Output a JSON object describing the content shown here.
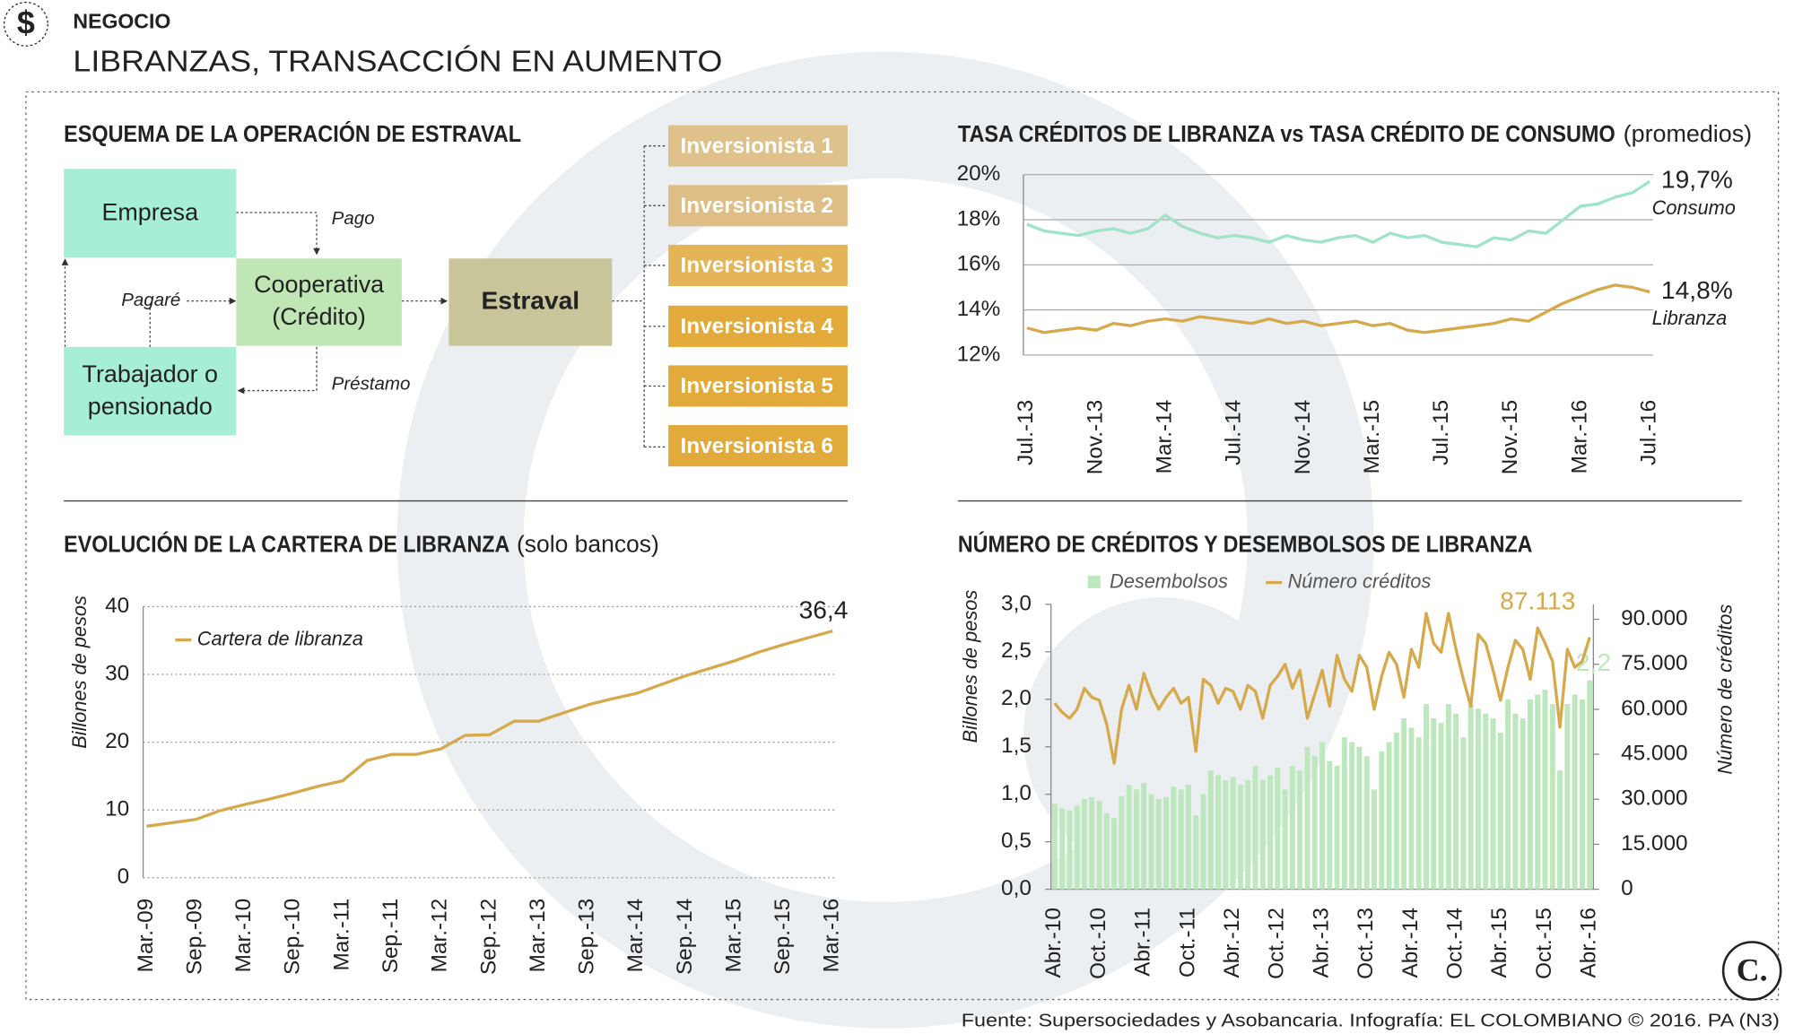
{
  "header": {
    "icon": "$",
    "section": "NEGOCIO",
    "title": "LIBRANZAS, TRANSACCIÓN EN AUMENTO"
  },
  "diagram": {
    "title": "ESQUEMA DE LA OPERACIÓN DE ESTRAVAL",
    "nodes": [
      {
        "label": [
          "Empresa"
        ]
      },
      {
        "label": [
          "Cooperativa",
          "(Crédito)"
        ]
      },
      {
        "label": [
          "Trabajador o",
          "pensionado"
        ]
      },
      {
        "label": [
          "Estraval"
        ]
      },
      {
        "label": [
          "Inversionista 1"
        ]
      },
      {
        "label": [
          "Inversionista 2"
        ]
      },
      {
        "label": [
          "Inversionista 3"
        ]
      },
      {
        "label": [
          "Inversionista 4"
        ]
      },
      {
        "label": [
          "Inversionista 5"
        ]
      },
      {
        "label": [
          "Inversionista 6"
        ]
      }
    ],
    "edges": [
      {
        "label": "Pago"
      },
      {
        "label": "Pagaré"
      },
      {
        "label": "Préstamo"
      }
    ]
  },
  "footer": "Fuente: Supersociedades y Asobancaria. Infografía: EL COLOMBIANO © 2016. PA (N3)",
  "logo": "C.",
  "chart_data": [
    {
      "type": "line",
      "title": "TASA CRÉDITOS DE LIBRANZA vs TASA CRÉDITO DE CONSUMO",
      "subtitle": "(promedios)",
      "categories": [
        "Jul.-13",
        null,
        null,
        null,
        "Nov.-13",
        null,
        null,
        null,
        "Mar.-14",
        null,
        null,
        null,
        "Jul.-14",
        null,
        null,
        null,
        "Nov.-14",
        null,
        null,
        null,
        "Mar.-15",
        null,
        null,
        null,
        "Jul.-15",
        null,
        null,
        null,
        "Nov.-15",
        null,
        null,
        null,
        "Mar.-16",
        null,
        null,
        null,
        "Jul.-16"
      ],
      "series": [
        {
          "name": "Consumo",
          "color": "#9fe3c8",
          "values": [
            17.8,
            17.5,
            17.4,
            17.3,
            17.5,
            17.6,
            17.4,
            17.6,
            18.2,
            17.7,
            17.4,
            17.2,
            17.3,
            17.2,
            17.0,
            17.3,
            17.1,
            17.0,
            17.2,
            17.3,
            17.0,
            17.4,
            17.2,
            17.3,
            17.0,
            16.9,
            16.8,
            17.2,
            17.1,
            17.5,
            17.4,
            18.0,
            18.6,
            18.7,
            19.0,
            19.2,
            19.7
          ],
          "value_labels": [
            null,
            null,
            null,
            null,
            null,
            null,
            null,
            null,
            null,
            null,
            null,
            null,
            null,
            null,
            null,
            null,
            null,
            null,
            null,
            null,
            null,
            null,
            null,
            null,
            null,
            null,
            null,
            null,
            null,
            null,
            null,
            null,
            null,
            null,
            null,
            null,
            "19,7%"
          ]
        },
        {
          "name": "Libranza",
          "color": "#d6a94c",
          "values": [
            13.2,
            13.0,
            13.1,
            13.2,
            13.1,
            13.4,
            13.3,
            13.5,
            13.6,
            13.5,
            13.7,
            13.6,
            13.5,
            13.4,
            13.6,
            13.4,
            13.5,
            13.3,
            13.4,
            13.5,
            13.3,
            13.4,
            13.1,
            13.0,
            13.1,
            13.2,
            13.3,
            13.4,
            13.6,
            13.5,
            13.9,
            14.3,
            14.6,
            14.9,
            15.1,
            15.0,
            14.8
          ],
          "value_labels": [
            null,
            null,
            null,
            null,
            null,
            null,
            null,
            null,
            null,
            null,
            null,
            null,
            null,
            null,
            null,
            null,
            null,
            null,
            null,
            null,
            null,
            null,
            null,
            null,
            null,
            null,
            null,
            null,
            null,
            null,
            null,
            null,
            null,
            null,
            null,
            null,
            "14,8%"
          ]
        }
      ],
      "ylim": [
        12,
        20
      ],
      "yticks": [
        {
          "value": 12,
          "label": "12%"
        },
        {
          "value": 14,
          "label": "14%"
        },
        {
          "value": 16,
          "label": "16%"
        },
        {
          "value": 18,
          "label": "18%"
        },
        {
          "value": 20,
          "label": "20%"
        }
      ],
      "grid": true,
      "legend": "right"
    },
    {
      "type": "line",
      "title": "EVOLUCIÓN DE LA CARTERA DE LIBRANZA",
      "subtitle": "(solo bancos)",
      "ylabel": "Billones de pesos",
      "categories": [
        "Mar.-09",
        null,
        "Sep.-09",
        null,
        "Mar.-10",
        null,
        "Sep.-10",
        null,
        "Mar.-11",
        null,
        "Sep.-11",
        null,
        "Mar.-12",
        null,
        "Sep.-12",
        null,
        "Mar.-13",
        null,
        "Sep.-13",
        null,
        "Mar.-14",
        null,
        "Sep.-14",
        null,
        "Mar.-15",
        null,
        "Sep.-15",
        null,
        "Mar.-16"
      ],
      "series": [
        {
          "name": "Cartera de libranza",
          "color": "#d6a94c",
          "values": [
            7.6,
            8.1,
            8.6,
            9.9,
            10.8,
            11.6,
            12.5,
            13.5,
            14.3,
            17.3,
            18.2,
            18.2,
            19.0,
            21.0,
            21.1,
            23.1,
            23.1,
            24.3,
            25.5,
            26.4,
            27.2,
            28.5,
            29.8,
            30.9,
            32.0,
            33.3,
            34.4,
            35.4,
            36.4
          ],
          "value_labels": [
            null,
            null,
            null,
            null,
            null,
            null,
            null,
            null,
            null,
            null,
            null,
            null,
            null,
            null,
            null,
            null,
            null,
            null,
            null,
            null,
            null,
            null,
            null,
            null,
            null,
            null,
            null,
            null,
            "36,4"
          ]
        }
      ],
      "ylim": [
        0,
        40
      ],
      "yticks": [
        0,
        10,
        20,
        30,
        40
      ],
      "grid": true,
      "legend": "top-left"
    },
    {
      "type": "bar",
      "title": "NÚMERO DE CRÉDITOS Y DESEMBOLSOS DE LIBRANZA",
      "ylabel": "Billones de pesos",
      "y2label": "Número de créditos",
      "categories": [
        "Abr.-10",
        null,
        null,
        null,
        null,
        null,
        "Oct.-10",
        null,
        null,
        null,
        null,
        null,
        "Abr.-11",
        null,
        null,
        null,
        null,
        null,
        "Oct.-11",
        null,
        null,
        null,
        null,
        null,
        "Abr.-12",
        null,
        null,
        null,
        null,
        null,
        "Oct.-12",
        null,
        null,
        null,
        null,
        null,
        "Abr.-13",
        null,
        null,
        null,
        null,
        null,
        "Oct.-13",
        null,
        null,
        null,
        null,
        null,
        "Abr.-14",
        null,
        null,
        null,
        null,
        null,
        "Oct.-14",
        null,
        null,
        null,
        null,
        null,
        "Abr.-15",
        null,
        null,
        null,
        null,
        null,
        "Oct.-15",
        null,
        null,
        null,
        null,
        null,
        "Abr.-16"
      ],
      "series": [
        {
          "name": "Desembolsos",
          "type": "bar",
          "color": "#bde8bd",
          "values": [
            0.9,
            0.85,
            0.83,
            0.88,
            0.95,
            0.97,
            0.93,
            0.8,
            0.75,
            0.98,
            1.1,
            1.05,
            1.12,
            1.0,
            0.95,
            0.97,
            1.08,
            1.05,
            1.1,
            0.78,
            1.0,
            1.25,
            1.2,
            1.15,
            1.18,
            1.1,
            1.15,
            1.3,
            1.15,
            1.2,
            1.28,
            1.05,
            1.3,
            1.25,
            1.5,
            1.4,
            1.55,
            1.35,
            1.3,
            1.6,
            1.55,
            1.5,
            1.4,
            1.05,
            1.45,
            1.55,
            1.65,
            1.8,
            1.7,
            1.6,
            1.95,
            1.8,
            1.75,
            1.95,
            1.85,
            1.6,
            1.95,
            1.9,
            1.85,
            1.8,
            1.65,
            2.0,
            1.85,
            1.8,
            2.0,
            2.05,
            2.1,
            1.95,
            1.25,
            1.95,
            2.05,
            2.0,
            2.2
          ],
          "value_labels": [
            null,
            null,
            null,
            null,
            null,
            null,
            null,
            null,
            null,
            null,
            null,
            null,
            null,
            null,
            null,
            null,
            null,
            null,
            null,
            null,
            null,
            null,
            null,
            null,
            null,
            null,
            null,
            null,
            null,
            null,
            null,
            null,
            null,
            null,
            null,
            null,
            null,
            null,
            null,
            null,
            null,
            null,
            null,
            null,
            null,
            null,
            null,
            null,
            null,
            null,
            null,
            null,
            null,
            null,
            null,
            null,
            null,
            null,
            null,
            null,
            null,
            null,
            null,
            null,
            null,
            null,
            null,
            null,
            null,
            null,
            null,
            null,
            "2,2"
          ]
        },
        {
          "name": "Número créditos",
          "type": "line",
          "axis": "y2",
          "color": "#d6a94c",
          "values": [
            62000,
            59000,
            57000,
            60000,
            67000,
            64000,
            63000,
            55000,
            42000,
            60000,
            68000,
            60000,
            72000,
            65000,
            60000,
            64000,
            67000,
            62000,
            64000,
            46000,
            70000,
            68000,
            62000,
            67000,
            66000,
            60000,
            68000,
            66000,
            57000,
            68000,
            71000,
            75000,
            67000,
            73000,
            57000,
            65000,
            73000,
            61000,
            78000,
            70000,
            66000,
            78000,
            74000,
            60000,
            71000,
            79000,
            75000,
            64000,
            80000,
            74000,
            92000,
            82000,
            79000,
            92000,
            80000,
            70000,
            61000,
            85000,
            82000,
            73000,
            63000,
            74000,
            83000,
            80000,
            70000,
            87113,
            82000,
            76000,
            54000,
            80000,
            74000,
            76000,
            84000
          ],
          "value_labels": [
            null,
            null,
            null,
            null,
            null,
            null,
            null,
            null,
            null,
            null,
            null,
            null,
            null,
            null,
            null,
            null,
            null,
            null,
            null,
            null,
            null,
            null,
            null,
            null,
            null,
            null,
            null,
            null,
            null,
            null,
            null,
            null,
            null,
            null,
            null,
            null,
            null,
            null,
            null,
            null,
            null,
            null,
            null,
            null,
            null,
            null,
            null,
            null,
            null,
            null,
            null,
            null,
            null,
            null,
            null,
            null,
            null,
            null,
            null,
            null,
            null,
            null,
            null,
            null,
            null,
            "87.113",
            null,
            null,
            null,
            null,
            null,
            null,
            null
          ]
        }
      ],
      "ylim": [
        0,
        3
      ],
      "yticks": [
        {
          "value": 0,
          "label": "0,0"
        },
        {
          "value": 0.5,
          "label": "0,5"
        },
        {
          "value": 1,
          "label": "1,0"
        },
        {
          "value": 1.5,
          "label": "1,5"
        },
        {
          "value": 2,
          "label": "2,0"
        },
        {
          "value": 2.5,
          "label": "2,5"
        },
        {
          "value": 3,
          "label": "3,0"
        }
      ],
      "y2lim": [
        0,
        95000
      ],
      "y2ticks": [
        0,
        {
          "value": 15000,
          "label": "15.000"
        },
        {
          "value": 30000,
          "label": "30.000"
        },
        {
          "value": 45000,
          "label": "45.000"
        },
        {
          "value": 60000,
          "label": "60.000"
        },
        {
          "value": 75000,
          "label": "75.000"
        },
        {
          "value": 90000,
          "label": "90.000"
        }
      ],
      "grid": false,
      "legend": "top"
    }
  ]
}
